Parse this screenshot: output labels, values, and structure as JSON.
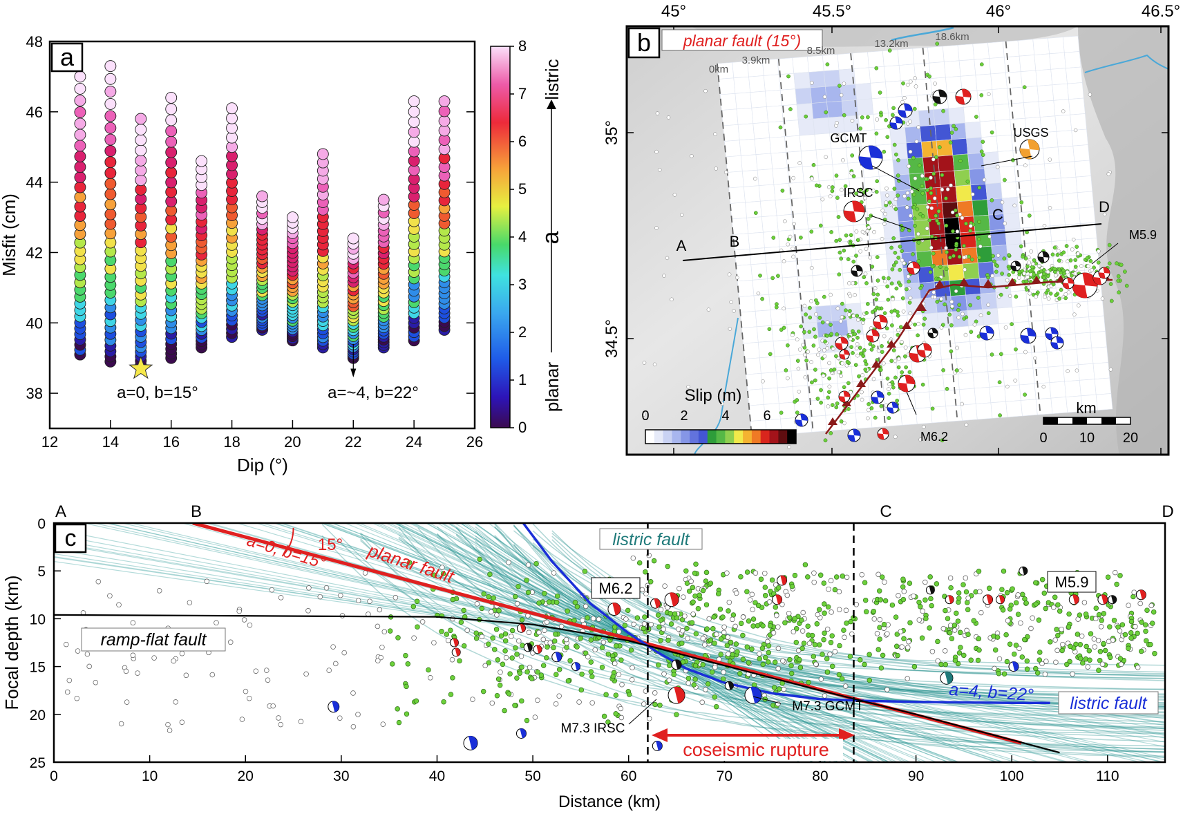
{
  "panel_a": {
    "label": "a",
    "xlabel": "Dip (°)",
    "ylabel": "Misfit (cm)",
    "x_ticks": [
      "12",
      "14",
      "16",
      "18",
      "20",
      "22",
      "24",
      "26"
    ],
    "y_ticks": [
      "38",
      "40",
      "42",
      "44",
      "46",
      "48"
    ],
    "colorbar": {
      "title": "a",
      "ticks": [
        "0",
        "1",
        "2",
        "3",
        "4",
        "5",
        "6",
        "7",
        "8"
      ],
      "low_label": "planar",
      "high_label": "listric"
    },
    "annotations": {
      "best_planar": "a=0, b=15°",
      "best_listric": "a=~4, b=22°"
    }
  },
  "panel_b": {
    "label": "b",
    "title": "planar fault (15°)",
    "lon_ticks": [
      "45°",
      "45.5°",
      "46°",
      "46.5°"
    ],
    "lat_ticks": [
      "35°",
      "34.5°"
    ],
    "distance_marks": [
      "0km",
      "3.9km",
      "8.5km",
      "13.2km",
      "18.6km"
    ],
    "profile_points": [
      "A",
      "B",
      "C",
      "D"
    ],
    "catalog_labels": [
      "GCMT",
      "USGS",
      "IRSC"
    ],
    "events": [
      "M5.9",
      "M6.2"
    ],
    "slip_scale": {
      "title": "Slip (m)",
      "ticks": [
        "0",
        "2",
        "4",
        "6"
      ],
      "colors": [
        "#ffffff",
        "#e6eaf8",
        "#c9d2f3",
        "#a8b6ee",
        "#8596e6",
        "#6273dd",
        "#4356d4",
        "#2e9d3a",
        "#55b846",
        "#8fcf4f",
        "#f1e94a",
        "#f4b331",
        "#ef7a25",
        "#d9261d",
        "#a3131a",
        "#5e0d10",
        "#000000"
      ]
    },
    "scale_bar": {
      "unit": "km",
      "ticks": [
        "0",
        "10",
        "20"
      ]
    }
  },
  "panel_c": {
    "label": "c",
    "xlabel": "Distance (km)",
    "ylabel": "Focal depth (km)",
    "x_ticks": [
      "0",
      "10",
      "20",
      "30",
      "40",
      "50",
      "60",
      "70",
      "80",
      "90",
      "100",
      "110"
    ],
    "y_ticks": [
      "0",
      "5",
      "10",
      "15",
      "20",
      "25"
    ],
    "section_letters": [
      "A",
      "B",
      "C",
      "D"
    ],
    "labels": {
      "planar": "planar fault",
      "planar_params": "a=0, b=15°",
      "angle": "15°",
      "listric": "listric fault",
      "listric_params": "a=4, b=22°",
      "ramp": "ramp-flat fault",
      "rupture": "coseismic rupture",
      "m62": "M6.2",
      "m59": "M5.9",
      "irsc": "M7.3 IRSC",
      "gcmt": "M7.3 GCMT"
    }
  },
  "chart_data": [
    {
      "type": "scatter",
      "panel": "a",
      "xlabel": "Dip (°)",
      "ylabel": "Misfit (cm)",
      "xlim": [
        12,
        26
      ],
      "ylim": [
        37,
        48
      ],
      "color_variable": "a",
      "color_range": [
        0,
        8
      ],
      "series": [
        {
          "dip": 13,
          "misfit_min": 39.1,
          "misfit_max": 47.0
        },
        {
          "dip": 14,
          "misfit_min": 38.9,
          "misfit_max": 47.3
        },
        {
          "dip": 15,
          "misfit_min": 38.8,
          "misfit_max": 45.8
        },
        {
          "dip": 16,
          "misfit_min": 39.0,
          "misfit_max": 46.4
        },
        {
          "dip": 17,
          "misfit_min": 39.3,
          "misfit_max": 44.6
        },
        {
          "dip": 18,
          "misfit_min": 39.6,
          "misfit_max": 46.1
        },
        {
          "dip": 19,
          "misfit_min": 39.8,
          "misfit_max": 43.6
        },
        {
          "dip": 20,
          "misfit_min": 39.5,
          "misfit_max": 43.0
        },
        {
          "dip": 21,
          "misfit_min": 39.3,
          "misfit_max": 44.8
        },
        {
          "dip": 22,
          "misfit_min": 39.0,
          "misfit_max": 42.4
        },
        {
          "dip": 23,
          "misfit_min": 39.3,
          "misfit_max": 43.5
        },
        {
          "dip": 24,
          "misfit_min": 39.5,
          "misfit_max": 46.3
        },
        {
          "dip": 25,
          "misfit_min": 39.8,
          "misfit_max": 46.3
        }
      ],
      "highlight": [
        {
          "dip": 15,
          "misfit": 38.7,
          "label": "a=0, b=15°"
        },
        {
          "dip": 22,
          "misfit": 38.7,
          "label": "a=~4, b=22°"
        }
      ]
    },
    {
      "type": "line",
      "panel": "c",
      "xlabel": "Distance (km)",
      "ylabel": "Focal depth (km)",
      "xlim": [
        0,
        116
      ],
      "ylim": [
        25,
        0
      ],
      "series": [
        {
          "name": "planar fault",
          "x": [
            14.5,
            101
          ],
          "y": [
            0,
            23
          ]
        },
        {
          "name": "listric fault",
          "x": [
            49,
            52,
            56,
            60,
            63,
            66,
            70,
            75,
            80,
            85,
            90,
            95,
            100,
            104
          ],
          "y": [
            0,
            4,
            8.4,
            11.5,
            13.5,
            15.2,
            16.7,
            17.8,
            18.4,
            18.6,
            18.7,
            18.75,
            18.8,
            18.8
          ]
        },
        {
          "name": "ramp-flat fault",
          "x": [
            0,
            40,
            50,
            60,
            70,
            80,
            90,
            105
          ],
          "y": [
            9.6,
            9.8,
            10.6,
            12.3,
            14.9,
            17.5,
            20.0,
            24.0
          ]
        }
      ],
      "vertical_lines": [
        62,
        83.5
      ]
    }
  ]
}
